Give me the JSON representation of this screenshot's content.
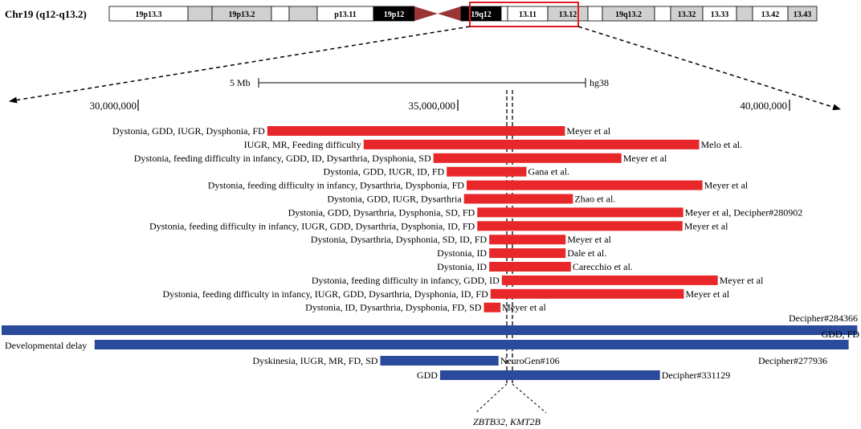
{
  "chromosome": {
    "title": "Chr19 (q12-q13.2)",
    "bands": [
      {
        "label": "19p13.3",
        "stain": "white"
      },
      {
        "label": "",
        "stain": "gray"
      },
      {
        "label": "19p13.2",
        "stain": "gray"
      },
      {
        "label": "",
        "stain": "white"
      },
      {
        "label": "",
        "stain": "gray"
      },
      {
        "label": "p13.11",
        "stain": "white"
      },
      {
        "label": "19p12",
        "stain": "black"
      },
      {
        "label": "",
        "stain": "centromere"
      },
      {
        "label": "19q12",
        "stain": "black"
      },
      {
        "label": "",
        "stain": "white"
      },
      {
        "label": "13.11",
        "stain": "white"
      },
      {
        "label": "13.12",
        "stain": "gray"
      },
      {
        "label": "",
        "stain": "white"
      },
      {
        "label": "19q13.2",
        "stain": "gray"
      },
      {
        "label": "",
        "stain": "white"
      },
      {
        "label": "13.32",
        "stain": "gray"
      },
      {
        "label": "13.33",
        "stain": "white"
      },
      {
        "label": "",
        "stain": "gray"
      },
      {
        "label": "13.42",
        "stain": "white"
      },
      {
        "label": "13.43",
        "stain": "gray"
      }
    ]
  },
  "scale": {
    "label": "5 Mb",
    "assembly": "hg38"
  },
  "axis_ticks": [
    "30,000,000",
    "35,000,000",
    "40,000,000"
  ],
  "genes_label": "ZBTB32, KMT2B",
  "colors": {
    "deletion": "#e8272a",
    "duplication": "#2b4a9c",
    "highlight": "#e11b22",
    "centromere": "#9b3434"
  },
  "chart_data": {
    "type": "range_bars",
    "x_unit": "bp (hg38)",
    "xlim": [
      28300000,
      41200000
    ],
    "gene_position": 35770000,
    "deletions": [
      {
        "phenotype": "Dystonia, GDD, IUGR, Dysphonia, FD",
        "start": 32300000,
        "end": 36780000,
        "reference": "Meyer et al"
      },
      {
        "phenotype": "IUGR, MR, Feeding difficulty",
        "start": 33750000,
        "end": 38800000,
        "reference": "Melo et al."
      },
      {
        "phenotype": "Dystonia, feeding difficulty in infancy, GDD, ID, Dysarthria, Dysphonia, SD",
        "start": 34800000,
        "end": 37630000,
        "reference": "Meyer et al"
      },
      {
        "phenotype": "Dystonia, GDD, IUGR, ID, FD",
        "start": 35000000,
        "end": 36200000,
        "reference": "Gana et al."
      },
      {
        "phenotype": "Dystonia, feeding difficulty in infancy, Dysarthria, Dysphonia, FD",
        "start": 35300000,
        "end": 38850000,
        "reference": "Meyer et al"
      },
      {
        "phenotype": "Dystonia, GDD, IUGR, Dysarthria",
        "start": 35260000,
        "end": 36900000,
        "reference": "Zhao et al."
      },
      {
        "phenotype": "Dystonia, GDD, Dysarthria, Dysphonia, SD, FD",
        "start": 35460000,
        "end": 38560000,
        "reference": "Meyer et al, Decipher#280902"
      },
      {
        "phenotype": "Dystonia, feeding difficulty in infancy, IUGR, GDD, Dysarthria, Dysphonia, ID, FD",
        "start": 35460000,
        "end": 38550000,
        "reference": "Meyer et al"
      },
      {
        "phenotype": "Dystonia, Dysarthria, Dysphonia, SD, ID, FD",
        "start": 35640000,
        "end": 36790000,
        "reference": "Meyer et al"
      },
      {
        "phenotype": "Dystonia, ID",
        "start": 35640000,
        "end": 36790000,
        "reference": "Dale et al."
      },
      {
        "phenotype": "Dystonia, ID",
        "start": 35640000,
        "end": 36870000,
        "reference": "Carecchio et al."
      },
      {
        "phenotype": "Dystonia, feeding difficulty in infancy, GDD, ID",
        "start": 35830000,
        "end": 39080000,
        "reference": "Meyer et al"
      },
      {
        "phenotype": "Dystonia, feeding difficulty in infancy, IUGR, GDD, Dysarthria, Dysphonia, ID, FD",
        "start": 35660000,
        "end": 38570000,
        "reference": "Meyer et al"
      },
      {
        "phenotype": "Dystonia, ID, Dysarthria, Dysphonia, FD, SD",
        "start": 35560000,
        "end": 35810000,
        "reference": "Meyer et al"
      }
    ],
    "duplications": [
      {
        "phenotype": "",
        "start": 28300000,
        "end": 41180000,
        "reference": "Decipher#284366",
        "extra": "GDD, FD"
      },
      {
        "phenotype": "Developmental delay",
        "start": 29700000,
        "end": 41050000,
        "reference": "Decipher#277936"
      },
      {
        "phenotype": "Dyskinesia, IUGR, MR, FD, SD",
        "start": 34000000,
        "end": 35780000,
        "reference": "NeuroGen#106"
      },
      {
        "phenotype": "GDD",
        "start": 34900000,
        "end": 38210000,
        "reference": "Decipher#331129"
      }
    ]
  }
}
